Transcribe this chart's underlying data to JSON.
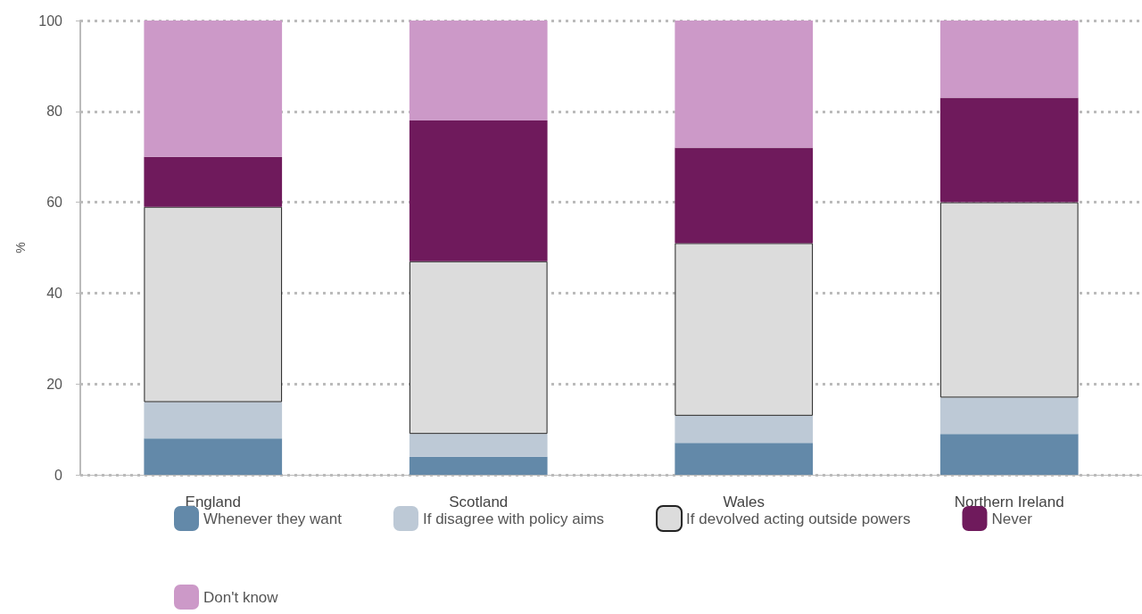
{
  "chart_data": {
    "type": "bar",
    "stacked": true,
    "ylabel": "%",
    "categories": [
      "England",
      "Scotland",
      "Wales",
      "Northern Ireland"
    ],
    "series": [
      {
        "name": "Whenever they want",
        "color": "#6389a9",
        "values": [
          8,
          4,
          7,
          9
        ]
      },
      {
        "name": "If disagree with policy aims",
        "color": "#bdc9d6",
        "values": [
          8,
          5,
          6,
          8
        ]
      },
      {
        "name": "If devolved acting outside powers",
        "color": "#dcdcdc",
        "values": [
          43,
          38,
          38,
          43
        ]
      },
      {
        "name": "Never",
        "color": "#6f1a5c",
        "values": [
          11,
          31,
          21,
          23
        ]
      },
      {
        "name": "Don't know",
        "color": "#cc99c8",
        "values": [
          30,
          22,
          28,
          17
        ]
      }
    ],
    "ylim": [
      0,
      100
    ],
    "yticks": [
      0,
      20,
      40,
      60,
      80,
      100
    ],
    "grid": "y",
    "legend": "bottom"
  }
}
